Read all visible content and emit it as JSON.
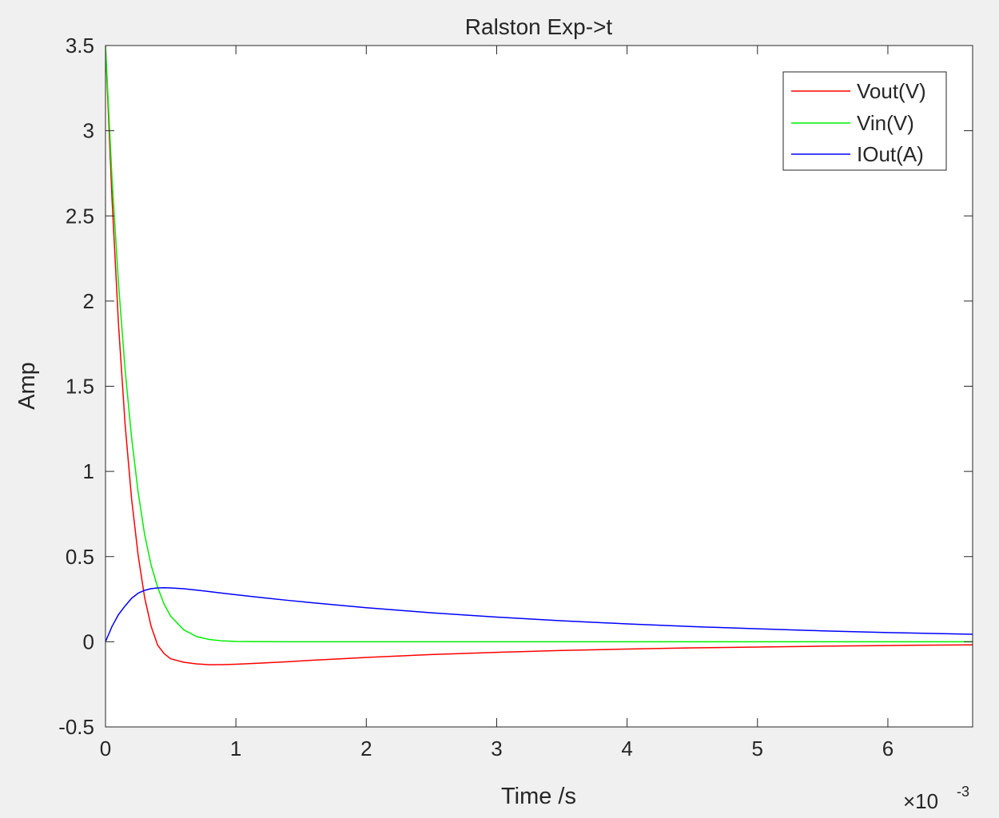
{
  "chart_data": {
    "type": "line",
    "title": "Ralston Exp->t",
    "xlabel": "Time /s",
    "ylabel": "Amp",
    "x_exponent_label": "×10",
    "x_exponent_power": "-3",
    "xlim": [
      0,
      6.65
    ],
    "ylim": [
      -0.5,
      3.5
    ],
    "x_scale_multiplier": 0.001,
    "xticks": [
      0,
      1,
      2,
      3,
      4,
      5,
      6
    ],
    "xtick_labels": [
      "0",
      "1",
      "2",
      "3",
      "4",
      "5",
      "6"
    ],
    "yticks": [
      -0.5,
      0,
      0.5,
      1,
      1.5,
      2,
      2.5,
      3,
      3.5
    ],
    "ytick_labels": [
      "-0.5",
      "0",
      "0.5",
      "1",
      "1.5",
      "2",
      "2.5",
      "3",
      "3.5"
    ],
    "grid": false,
    "legend_position": "top-right",
    "x": [
      0,
      0.05,
      0.1,
      0.15,
      0.2,
      0.25,
      0.3,
      0.35,
      0.4,
      0.45,
      0.5,
      0.6,
      0.7,
      0.8,
      0.9,
      1.0,
      1.2,
      1.4,
      1.6,
      1.8,
      2.0,
      2.5,
      3.0,
      3.5,
      4.0,
      4.5,
      5.0,
      5.5,
      6.0,
      6.65
    ],
    "series": [
      {
        "name": "Vout(V)",
        "color": "#ff0000",
        "values": [
          3.5,
          2.6,
          1.86,
          1.28,
          0.84,
          0.51,
          0.26,
          0.09,
          -0.02,
          -0.07,
          -0.1,
          -0.12,
          -0.13,
          -0.135,
          -0.134,
          -0.132,
          -0.125,
          -0.117,
          -0.108,
          -0.1,
          -0.092,
          -0.075,
          -0.062,
          -0.051,
          -0.043,
          -0.036,
          -0.031,
          -0.026,
          -0.022,
          -0.018
        ]
      },
      {
        "name": "Vin(V)",
        "color": "#00ee00",
        "values": [
          3.5,
          2.72,
          2.1,
          1.6,
          1.2,
          0.88,
          0.63,
          0.45,
          0.32,
          0.22,
          0.15,
          0.07,
          0.03,
          0.013,
          0.005,
          0.002,
          0.0005,
          0.0001,
          0,
          0,
          0,
          0,
          0,
          0,
          0,
          0,
          0,
          0,
          0,
          0
        ]
      },
      {
        "name": "IOut(A)",
        "color": "#0000ff",
        "values": [
          0,
          0.09,
          0.16,
          0.21,
          0.255,
          0.285,
          0.302,
          0.312,
          0.316,
          0.317,
          0.316,
          0.311,
          0.303,
          0.294,
          0.285,
          0.276,
          0.259,
          0.243,
          0.228,
          0.214,
          0.2,
          0.17,
          0.145,
          0.123,
          0.105,
          0.089,
          0.076,
          0.064,
          0.054,
          0.044
        ]
      }
    ]
  }
}
